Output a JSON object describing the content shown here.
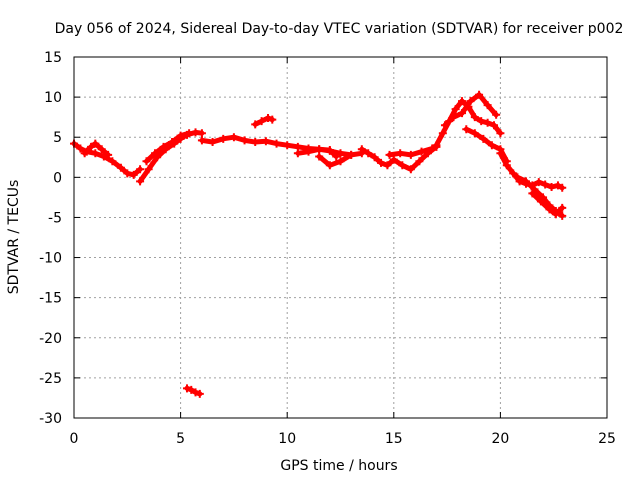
{
  "chart_data": {
    "type": "scatter",
    "title": "Day 056 of 2024, Sidereal Day-to-day VTEC variation (SDTVAR) for receiver p002",
    "xlabel": "GPS time / hours",
    "ylabel": "SDTVAR / TECUs",
    "xlim": [
      0,
      25
    ],
    "ylim": [
      -30,
      15
    ],
    "xticks": [
      0,
      5,
      10,
      15,
      20,
      25
    ],
    "xtick_labels": [
      "0",
      "5",
      "10",
      "15",
      "20",
      "25"
    ],
    "yticks": [
      -30,
      -25,
      -20,
      -15,
      -10,
      -5,
      0,
      5,
      10,
      15
    ],
    "ytick_labels": [
      "-30",
      "-25",
      "-20",
      "-15",
      "-10",
      "-5",
      "0",
      "5",
      "10",
      "15"
    ],
    "grid": true,
    "series": [
      {
        "name": "SDTVAR",
        "color": "#ff0000",
        "marker": "plus",
        "tracks": [
          {
            "x": [
              0.0,
              0.3,
              0.6,
              1.0,
              1.4,
              1.8,
              2.2,
              2.5,
              2.8,
              3.1
            ],
            "y": [
              4.2,
              3.6,
              3.2,
              3.0,
              2.6,
              2.0,
              1.2,
              0.5,
              0.3,
              1.0
            ]
          },
          {
            "x": [
              0.5,
              0.8,
              1.0,
              1.3,
              1.6
            ],
            "y": [
              3.0,
              3.8,
              4.2,
              3.5,
              2.8
            ]
          },
          {
            "x": [
              3.1,
              3.5,
              3.9,
              4.3,
              4.7,
              5.0,
              5.3,
              5.7,
              6.0
            ],
            "y": [
              -0.5,
              1.0,
              2.5,
              3.5,
              4.2,
              4.8,
              5.3,
              5.6,
              5.5
            ]
          },
          {
            "x": [
              3.4,
              3.8,
              4.2,
              4.6,
              5.0,
              5.4
            ],
            "y": [
              2.0,
              3.0,
              3.8,
              4.4,
              5.2,
              5.5
            ]
          },
          {
            "x": [
              6.0,
              6.5,
              7.0,
              7.5,
              8.0,
              8.5,
              9.0,
              9.5,
              10.0,
              10.5,
              11.0,
              11.5,
              12.0,
              12.5,
              13.0
            ],
            "y": [
              4.6,
              4.4,
              4.8,
              5.0,
              4.6,
              4.4,
              4.5,
              4.2,
              4.0,
              3.8,
              3.6,
              3.5,
              3.3,
              3.0,
              2.8
            ]
          },
          {
            "x": [
              8.5,
              8.8,
              9.1,
              9.3
            ],
            "y": [
              6.6,
              7.0,
              7.4,
              7.2
            ]
          },
          {
            "x": [
              10.5,
              11.0,
              11.5,
              12.0,
              12.3
            ],
            "y": [
              3.0,
              3.2,
              3.5,
              3.4,
              2.6
            ]
          },
          {
            "x": [
              11.5,
              12.0,
              12.5,
              13.0,
              13.5
            ],
            "y": [
              2.6,
              1.5,
              2.0,
              2.8,
              3.0
            ]
          },
          {
            "x": [
              13.5,
              13.8,
              14.1,
              14.4,
              14.7,
              15.0,
              15.4,
              15.8,
              16.2,
              16.6,
              17.0
            ],
            "y": [
              3.5,
              3.0,
              2.5,
              1.8,
              1.5,
              2.2,
              1.5,
              1.0,
              2.0,
              3.0,
              3.8
            ]
          },
          {
            "x": [
              14.8,
              15.3,
              15.8,
              16.3,
              16.8
            ],
            "y": [
              2.8,
              3.0,
              2.8,
              3.2,
              3.6
            ]
          },
          {
            "x": [
              17.0,
              17.3,
              17.6,
              17.9,
              18.2,
              18.5,
              18.8,
              19.1,
              19.4,
              19.7,
              20.0
            ],
            "y": [
              4.0,
              5.5,
              7.0,
              8.5,
              9.5,
              8.8,
              7.5,
              7.0,
              6.8,
              6.5,
              5.5
            ]
          },
          {
            "x": [
              17.4,
              17.8,
              18.2,
              18.6,
              19.0,
              19.4,
              19.8
            ],
            "y": [
              6.5,
              7.5,
              8.0,
              9.5,
              10.3,
              9.0,
              7.8
            ]
          },
          {
            "x": [
              18.4,
              18.8,
              19.2,
              19.6,
              20.0,
              20.3
            ],
            "y": [
              6.0,
              5.5,
              4.8,
              4.0,
              3.5,
              2.0
            ]
          },
          {
            "x": [
              20.0,
              20.3,
              20.6,
              20.9,
              21.2,
              21.5,
              21.8,
              22.1,
              22.4,
              22.7,
              22.9
            ],
            "y": [
              3.0,
              1.5,
              0.5,
              -0.5,
              -0.8,
              -1.0,
              -0.6,
              -0.9,
              -1.2,
              -1.0,
              -1.3
            ]
          },
          {
            "x": [
              20.8,
              21.2,
              21.6,
              22.0,
              22.3,
              22.6,
              22.9
            ],
            "y": [
              0.0,
              -0.5,
              -1.5,
              -2.5,
              -3.5,
              -4.2,
              -4.8
            ]
          },
          {
            "x": [
              21.5,
              21.9,
              22.3,
              22.6,
              22.9
            ],
            "y": [
              -2.0,
              -3.0,
              -4.0,
              -4.6,
              -3.8
            ]
          },
          {
            "x": [
              5.3,
              5.5,
              5.7,
              5.9
            ],
            "y": [
              -26.3,
              -26.5,
              -26.8,
              -27.0
            ]
          }
        ]
      }
    ]
  }
}
